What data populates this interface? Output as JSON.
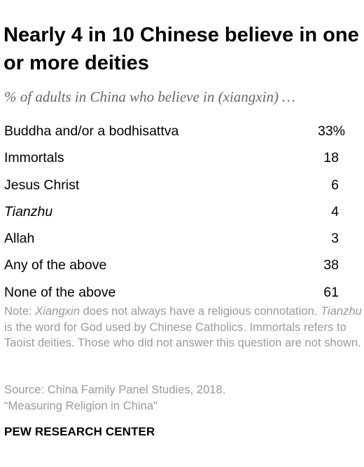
{
  "chart_data": {
    "type": "table",
    "title": "Nearly 4 in 10 Chinese believe in one or more deities",
    "subtitle": "% of adults in China who believe in (xiangxin) …",
    "categories": [
      "Buddha and/or a bodhisattva",
      "Immortals",
      "Jesus Christ",
      "Tianzhu",
      "Allah",
      "Any of the above",
      "None of the above"
    ],
    "values": [
      33,
      18,
      6,
      4,
      3,
      38,
      61
    ],
    "value_labels": [
      "33%",
      "18",
      "6",
      "4",
      "3",
      "38",
      "61"
    ],
    "rows": [
      {
        "label": "Buddha and/or a bodhisattva",
        "value": "33%",
        "italic": false
      },
      {
        "label": "Immortals",
        "value": "18",
        "italic": false
      },
      {
        "label": "Jesus Christ",
        "value": "6",
        "italic": false
      },
      {
        "label": "Tianzhu",
        "value": "4",
        "italic": true
      },
      {
        "label": "Allah",
        "value": "3",
        "italic": false
      },
      {
        "label": "Any of the above",
        "value": "38",
        "italic": false
      },
      {
        "label": "None of the above",
        "value": "61",
        "italic": false
      }
    ]
  },
  "note": {
    "prefix": "Note: ",
    "term1": "Xiangxin",
    "text1": " does not always have a religious connotation. ",
    "term2": "Tianzhu",
    "text2": " is the word for God used by Chinese Catholics. Immortals refers to Taoist deities. Those who did not answer this question are not shown."
  },
  "source": {
    "line1": "Source: China Family Panel Studies, 2018.",
    "line2": "“Measuring Religion in China\""
  },
  "brand": "PEW RESEARCH CENTER",
  "colors": {
    "title": "#000000",
    "subtitle": "#666666",
    "note": "#9a9a9a",
    "text": "#000000"
  }
}
